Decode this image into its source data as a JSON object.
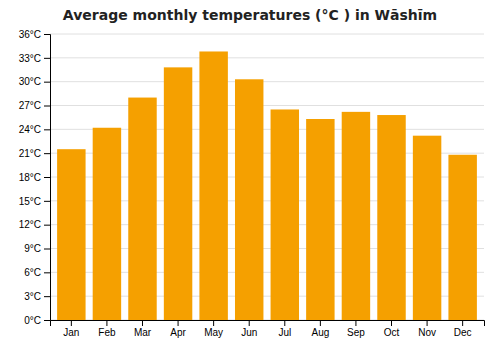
{
  "chart_data": {
    "type": "bar",
    "title": "Average monthly temperatures (°C ) in Wāshīm",
    "categories": [
      "Jan",
      "Feb",
      "Mar",
      "Apr",
      "May",
      "Jun",
      "Jul",
      "Aug",
      "Sep",
      "Oct",
      "Nov",
      "Dec"
    ],
    "values": [
      21.5,
      24.2,
      28.0,
      31.8,
      33.8,
      30.3,
      26.5,
      25.3,
      26.2,
      25.8,
      23.2,
      20.8
    ],
    "color": "#F5A000",
    "ylim": [
      0,
      36
    ],
    "yticks": [
      {
        "value": 0,
        "label": "0°C"
      },
      {
        "value": 3,
        "label": "3°C"
      },
      {
        "value": 6,
        "label": "6°C"
      },
      {
        "value": 9,
        "label": "9°C"
      },
      {
        "value": 12,
        "label": "12°C"
      },
      {
        "value": 15,
        "label": "15°C"
      },
      {
        "value": 18,
        "label": "18°C"
      },
      {
        "value": 21,
        "label": "21°C"
      },
      {
        "value": 24,
        "label": "24°C"
      },
      {
        "value": 27,
        "label": "27°C"
      },
      {
        "value": 30,
        "label": "30°C"
      },
      {
        "value": 33,
        "label": "33°C"
      },
      {
        "value": 36,
        "label": "36°C"
      }
    ],
    "grid": true
  }
}
